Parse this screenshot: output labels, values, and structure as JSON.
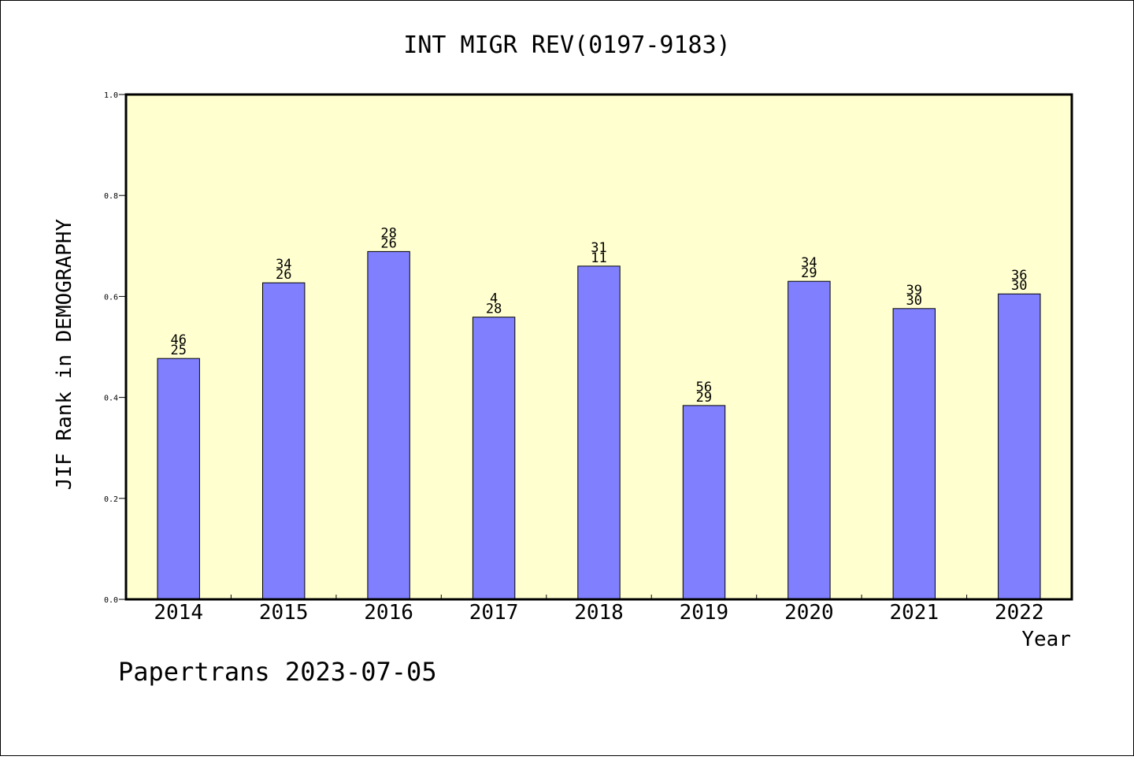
{
  "chart_data": {
    "type": "bar",
    "title": "INT MIGR REV(0197-9183)",
    "xlabel": "Year",
    "ylabel": "JIF Rank in DEMOGRAPHY",
    "ylim": [
      0,
      1.0
    ],
    "yticks": [
      "0.0",
      "0.2",
      "0.4",
      "0.6",
      "0.8",
      "1.0"
    ],
    "grid": false,
    "categories": [
      "2014",
      "2015",
      "2016",
      "2017",
      "2018",
      "2019",
      "2020",
      "2021",
      "2022"
    ],
    "values": [
      0.477,
      0.627,
      0.689,
      0.559,
      0.66,
      0.384,
      0.63,
      0.576,
      0.605
    ],
    "labels_top": [
      "46",
      "34",
      "28",
      "4",
      "31",
      "56",
      "34",
      "39",
      "36"
    ],
    "labels_bottom": [
      "25",
      "26",
      "26",
      "28",
      "11",
      "29",
      "29",
      "30",
      "30"
    ],
    "colors": {
      "bar": "#8080ff",
      "plot_background": "#ffffd0",
      "frame": "#000000"
    }
  },
  "footer": "Papertrans 2023-07-05"
}
